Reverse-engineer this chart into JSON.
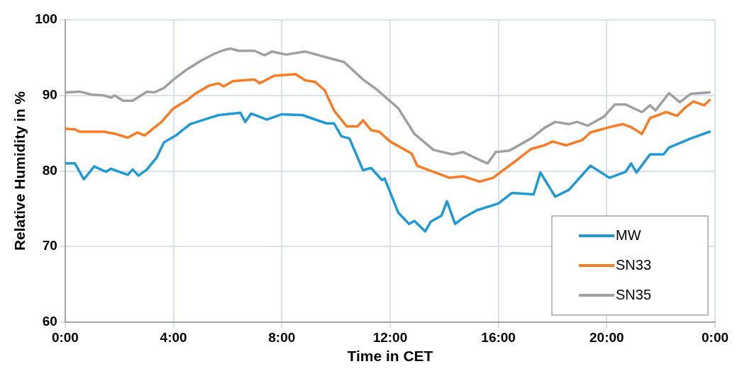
{
  "chart_data": {
    "type": "line",
    "xlabel": "Time in CET",
    "ylabel": "Relative Humidity in %",
    "xlim": [
      0,
      24
    ],
    "xticks": [
      {
        "value": 0,
        "label": "0:00"
      },
      {
        "value": 4,
        "label": "4:00"
      },
      {
        "value": 8,
        "label": "8:00"
      },
      {
        "value": 12,
        "label": "12:00"
      },
      {
        "value": 16,
        "label": "16:00"
      },
      {
        "value": 20,
        "label": "20:00"
      },
      {
        "value": 24,
        "label": "0:00"
      }
    ],
    "ylim": [
      60,
      100
    ],
    "yticks": [
      60,
      70,
      80,
      90,
      100
    ],
    "grid": true,
    "legend": "bottom right",
    "marker": "none",
    "line_style": "solid",
    "series": [
      {
        "name": "MW",
        "color": "#1f9ad6",
        "x": [
          0,
          0.36,
          0.69,
          1.07,
          1.51,
          1.69,
          2.31,
          2.49,
          2.71,
          3.02,
          3.38,
          3.65,
          4.09,
          4.61,
          5.14,
          5.67,
          6.47,
          6.65,
          6.87,
          7.45,
          8.0,
          8.76,
          9.65,
          9.93,
          10.2,
          10.5,
          11.0,
          11.3,
          11.7,
          11.8,
          12.3,
          12.7,
          12.9,
          13.3,
          13.5,
          13.9,
          14.1,
          14.4,
          14.7,
          15.2,
          16.0,
          16.5,
          17.3,
          17.55,
          18.1,
          18.6,
          19.4,
          20.1,
          20.7,
          20.9,
          21.1,
          21.6,
          22.1,
          22.3,
          23.1,
          23.8
        ],
        "values": [
          81.0,
          81.0,
          78.9,
          80.6,
          79.9,
          80.3,
          79.5,
          80.2,
          79.4,
          80.2,
          81.8,
          83.8,
          84.7,
          86.2,
          86.8,
          87.4,
          87.7,
          86.5,
          87.6,
          86.8,
          87.5,
          87.4,
          86.3,
          86.3,
          84.6,
          84.3,
          80.1,
          80.4,
          78.8,
          79.0,
          74.5,
          73.0,
          73.4,
          72.0,
          73.3,
          74.1,
          76.0,
          73.0,
          73.8,
          74.8,
          75.7,
          77.1,
          76.9,
          79.8,
          76.6,
          77.5,
          80.7,
          79.1,
          79.9,
          81.0,
          79.8,
          82.2,
          82.2,
          83.1,
          84.3,
          85.2
        ]
      },
      {
        "name": "SN33",
        "color": "#f97b24",
        "x": [
          0,
          0.36,
          0.54,
          1.43,
          1.87,
          2.31,
          2.67,
          2.93,
          3.56,
          4.0,
          4.52,
          4.79,
          5.32,
          5.67,
          5.85,
          6.2,
          7.0,
          7.18,
          7.72,
          8.51,
          8.87,
          9.22,
          9.58,
          9.93,
          10.4,
          10.8,
          11.0,
          11.3,
          11.6,
          12.0,
          12.8,
          13.0,
          13.6,
          14.2,
          14.7,
          15.3,
          15.8,
          16.7,
          17.2,
          17.7,
          18.0,
          18.5,
          19.1,
          19.4,
          20.1,
          20.6,
          20.9,
          21.3,
          21.6,
          22.2,
          22.6,
          22.9,
          23.2,
          23.6,
          23.8
        ],
        "values": [
          85.6,
          85.5,
          85.2,
          85.2,
          84.9,
          84.4,
          85.1,
          84.7,
          86.5,
          88.3,
          89.4,
          90.2,
          91.3,
          91.6,
          91.2,
          91.9,
          92.1,
          91.6,
          92.6,
          92.8,
          92.0,
          91.8,
          90.7,
          88.0,
          85.9,
          85.9,
          86.7,
          85.4,
          85.2,
          83.9,
          82.3,
          80.7,
          79.9,
          79.1,
          79.3,
          78.6,
          79.1,
          81.5,
          82.9,
          83.4,
          83.9,
          83.4,
          84.1,
          85.1,
          85.8,
          86.2,
          85.8,
          84.9,
          87.0,
          87.8,
          87.3,
          88.4,
          89.2,
          88.7,
          89.4
        ]
      },
      {
        "name": "SN35",
        "color": "#a0a0a0",
        "x": [
          0,
          0.54,
          0.98,
          1.43,
          1.69,
          1.82,
          2.14,
          2.49,
          3.02,
          3.29,
          3.65,
          4.0,
          4.44,
          4.97,
          5.5,
          5.86,
          6.12,
          6.39,
          7.0,
          7.36,
          7.63,
          8.16,
          8.87,
          9.58,
          10.3,
          11.0,
          11.5,
          12.3,
          12.9,
          13.6,
          14.3,
          14.7,
          15.1,
          15.6,
          15.9,
          16.4,
          17.2,
          17.7,
          18.1,
          18.6,
          18.9,
          19.3,
          19.9,
          20.3,
          20.7,
          21.3,
          21.6,
          21.8,
          22.3,
          22.7,
          23.1,
          23.8
        ],
        "values": [
          90.4,
          90.5,
          90.1,
          90.0,
          89.7,
          90.0,
          89.3,
          89.3,
          90.5,
          90.4,
          91.0,
          92.1,
          93.3,
          94.5,
          95.5,
          96.0,
          96.2,
          95.9,
          95.9,
          95.3,
          95.8,
          95.4,
          95.8,
          95.1,
          94.4,
          92.1,
          90.8,
          88.3,
          84.9,
          82.8,
          82.2,
          82.5,
          81.8,
          81.0,
          82.5,
          82.7,
          84.3,
          85.7,
          86.5,
          86.2,
          86.5,
          86.0,
          87.2,
          88.8,
          88.8,
          87.8,
          88.7,
          88.0,
          90.3,
          89.1,
          90.2,
          90.4
        ]
      }
    ]
  }
}
